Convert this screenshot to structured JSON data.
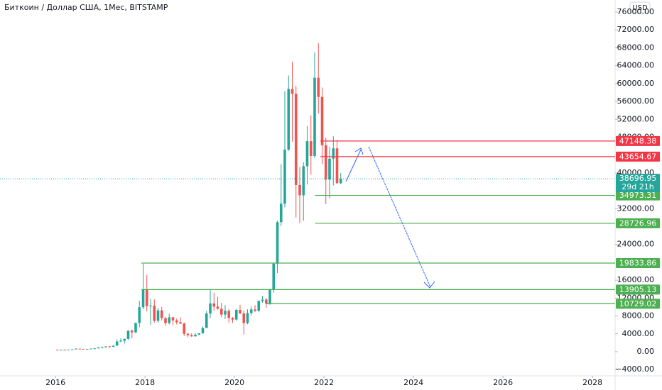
{
  "chart_data": {
    "type": "candlestick",
    "title": "Биткоин / Доллар США, 1Мес, BITSTAMP",
    "currency": "USD",
    "up_color": "#26a69a",
    "down_color": "#ef5350",
    "xlim": [
      2014.76,
      2028.49
    ],
    "xticks": [
      2016,
      2018,
      2020,
      2022,
      2024,
      2026,
      2028
    ],
    "ylim": [
      -5400,
      78700
    ],
    "yticks": [
      {
        "value": -4000,
        "label": "−4000.00"
      },
      {
        "value": 0,
        "label": "0.00"
      },
      {
        "value": 4000,
        "label": "4000.00"
      },
      {
        "value": 8000,
        "label": "8000.00"
      },
      {
        "value": 12000,
        "label": "12000.00"
      },
      {
        "value": 16000,
        "label": "16000.00"
      },
      {
        "value": 24000,
        "label": "24000.00"
      },
      {
        "value": 32000,
        "label": "32000.00"
      },
      {
        "value": 40000,
        "label": "40000.00"
      },
      {
        "value": 48000,
        "label": "48000.00"
      },
      {
        "value": 52000,
        "label": "52000.00"
      },
      {
        "value": 56000,
        "label": "56000.00"
      },
      {
        "value": 60000,
        "label": "60000.00"
      },
      {
        "value": 64000,
        "label": "64000.00"
      },
      {
        "value": 68000,
        "label": "68000.00"
      },
      {
        "value": 72000,
        "label": "72000.00"
      },
      {
        "value": 76000,
        "label": "76000.00"
      }
    ],
    "x": [
      2016.0,
      2016.083,
      2016.167,
      2016.25,
      2016.333,
      2016.417,
      2016.5,
      2016.583,
      2016.667,
      2016.75,
      2016.833,
      2016.917,
      2017.0,
      2017.083,
      2017.167,
      2017.25,
      2017.333,
      2017.417,
      2017.5,
      2017.583,
      2017.667,
      2017.75,
      2017.833,
      2017.917,
      2018.0,
      2018.083,
      2018.167,
      2018.25,
      2018.333,
      2018.417,
      2018.5,
      2018.583,
      2018.667,
      2018.75,
      2018.833,
      2018.917,
      2019.0,
      2019.083,
      2019.167,
      2019.25,
      2019.333,
      2019.417,
      2019.5,
      2019.583,
      2019.667,
      2019.75,
      2019.833,
      2019.917,
      2020.0,
      2020.083,
      2020.167,
      2020.25,
      2020.333,
      2020.417,
      2020.5,
      2020.583,
      2020.667,
      2020.75,
      2020.833,
      2020.917,
      2021.0,
      2021.083,
      2021.167,
      2021.25,
      2021.333,
      2021.417,
      2021.5,
      2021.583,
      2021.667,
      2021.75,
      2021.833,
      2021.917,
      2022.0,
      2022.083,
      2022.167,
      2022.25,
      2022.333
    ],
    "open": [
      430,
      370,
      437,
      416,
      448,
      531,
      673,
      624,
      575,
      608,
      700,
      745,
      963,
      970,
      1190,
      1080,
      1350,
      2300,
      2480,
      2870,
      4700,
      4340,
      6450,
      9950,
      13800,
      10200,
      10300,
      6900,
      9250,
      7500,
      6400,
      7700,
      7000,
      6600,
      6300,
      4000,
      3700,
      3430,
      3800,
      4100,
      5300,
      8550,
      10800,
      10100,
      9600,
      8300,
      9150,
      7550,
      7200,
      9350,
      8550,
      6400,
      8650,
      9450,
      9140,
      11350,
      11650,
      10780,
      13800,
      19700,
      28990,
      33110,
      45200,
      58800,
      57700,
      37300,
      35000,
      41500,
      47100,
      43800,
      61300,
      57000,
      46200,
      38500,
      43200,
      45500,
      37700
    ],
    "high": [
      460,
      440,
      440,
      470,
      540,
      780,
      680,
      630,
      610,
      720,
      750,
      970,
      1150,
      1200,
      1290,
      1350,
      2760,
      3000,
      2950,
      4750,
      4980,
      6470,
      11400,
      19666,
      17200,
      11800,
      11700,
      9800,
      10000,
      7800,
      8500,
      7750,
      7400,
      7700,
      6550,
      4250,
      4100,
      4200,
      4150,
      5600,
      9100,
      13880,
      13200,
      12300,
      10950,
      10400,
      9500,
      7750,
      9600,
      10500,
      9200,
      9470,
      10100,
      10400,
      11450,
      12470,
      12050,
      14100,
      19900,
      29300,
      41950,
      58350,
      61800,
      64900,
      59500,
      41300,
      42400,
      50500,
      52900,
      67000,
      69000,
      59100,
      47900,
      45800,
      48200,
      47400,
      40000
    ],
    "low": [
      350,
      365,
      400,
      410,
      440,
      520,
      600,
      540,
      570,
      600,
      690,
      740,
      750,
      915,
      890,
      1070,
      1340,
      2100,
      1830,
      2670,
      2970,
      4110,
      5500,
      9500,
      9000,
      6000,
      6500,
      6500,
      7000,
      5800,
      6100,
      5900,
      6100,
      6200,
      3500,
      3200,
      3350,
      3400,
      3700,
      4050,
      5300,
      7500,
      9100,
      9400,
      7700,
      7300,
      6500,
      6450,
      6900,
      8450,
      3850,
      6150,
      8100,
      8900,
      8950,
      10950,
      9850,
      10500,
      13200,
      17600,
      28100,
      32300,
      44950,
      47000,
      30000,
      28800,
      29300,
      37400,
      39600,
      43300,
      53300,
      42000,
      33000,
      34300,
      37200,
      37600,
      37500
    ],
    "close": [
      370,
      437,
      416,
      448,
      531,
      673,
      624,
      575,
      608,
      700,
      745,
      963,
      970,
      1190,
      1080,
      1350,
      2300,
      2480,
      2870,
      4700,
      4340,
      6450,
      9950,
      13800,
      10200,
      10300,
      6900,
      9250,
      7500,
      6400,
      7700,
      7000,
      6600,
      6300,
      4000,
      3700,
      3430,
      3800,
      4100,
      5300,
      8550,
      10800,
      10100,
      9600,
      8300,
      9150,
      7550,
      7200,
      9350,
      8550,
      6400,
      8650,
      9450,
      9140,
      11350,
      11650,
      10780,
      13800,
      19700,
      28990,
      33110,
      45200,
      58800,
      57700,
      37300,
      35000,
      41500,
      47100,
      43800,
      61300,
      57000,
      46200,
      38500,
      43200,
      45500,
      37700,
      38697
    ],
    "current_price": 38696.95,
    "countdown": "29d 21h",
    "levels": [
      {
        "value": 47148.38,
        "color": "#f23645",
        "start": 2021.92
      },
      {
        "value": 43654.67,
        "color": "#f23645",
        "start": 2021.92
      },
      {
        "value": 34973.31,
        "color": "#4caf50",
        "start": 2021.8
      },
      {
        "value": 28726.96,
        "color": "#4caf50",
        "start": 2021.8
      },
      {
        "value": 19833.86,
        "color": "#4caf50",
        "start": 2017.92
      },
      {
        "value": 13905.13,
        "color": "#4caf50",
        "start": 2017.92
      },
      {
        "value": 10729.02,
        "color": "#4caf50",
        "start": 2020.7
      }
    ]
  }
}
